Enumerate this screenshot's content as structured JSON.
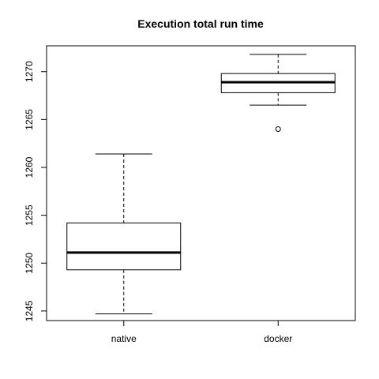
{
  "chart_data": {
    "type": "boxplot",
    "title": "Execution total run time",
    "xlabel": "",
    "ylabel": "",
    "categories": [
      "native",
      "docker"
    ],
    "ylim": [
      1244,
      1272.7
    ],
    "yticks": [
      1245,
      1250,
      1255,
      1260,
      1265,
      1270
    ],
    "grid": false,
    "boxes": [
      {
        "name": "native",
        "min": 1244.7,
        "q1": 1249.3,
        "median": 1251.1,
        "q3": 1254.2,
        "max": 1261.4,
        "outliers": []
      },
      {
        "name": "docker",
        "min": 1266.5,
        "q1": 1267.8,
        "median": 1268.9,
        "q3": 1269.8,
        "max": 1271.8,
        "outliers": [
          1264.0
        ]
      }
    ]
  }
}
